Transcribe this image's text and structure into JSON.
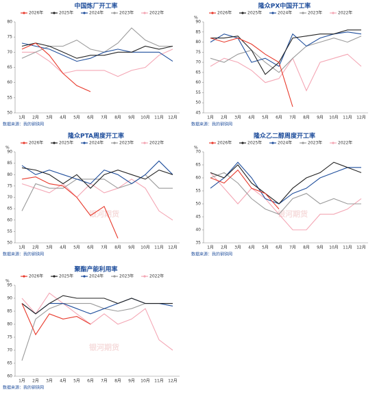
{
  "chart_data": [
    {
      "type": "line",
      "title": "中国炼厂开工率",
      "source": "数据来源：我的钢铁网",
      "categories": [
        "1月",
        "2月",
        "3月",
        "4月",
        "5月",
        "6月",
        "7月",
        "8月",
        "9月",
        "10月",
        "11月",
        "12月"
      ],
      "ylim": [
        50,
        80
      ],
      "yticks": [
        50,
        55,
        60,
        65,
        70,
        75,
        80
      ],
      "grid": false,
      "series": [
        {
          "name": "2026年",
          "color": "#e8392b",
          "values": [
            71,
            73,
            69,
            63,
            59,
            57,
            null,
            null,
            null,
            null,
            null,
            null
          ]
        },
        {
          "name": "2025年",
          "color": "#222222",
          "values": [
            72,
            73,
            72,
            70,
            68,
            69,
            69,
            70,
            70,
            72,
            71,
            72
          ]
        },
        {
          "name": "2024年",
          "color": "#1f4e9c",
          "values": [
            73,
            72,
            71,
            69,
            67,
            68,
            70,
            71,
            70,
            70,
            70,
            67
          ]
        },
        {
          "name": "2023年",
          "color": "#9a9a9a",
          "values": [
            68,
            70,
            72,
            72,
            74,
            71,
            70,
            73,
            78,
            74,
            72,
            72
          ]
        },
        {
          "name": "2022年",
          "color": "#f4a6b4",
          "values": [
            70,
            70,
            67,
            63,
            64,
            64,
            64,
            62,
            64,
            65,
            69,
            71
          ]
        }
      ]
    },
    {
      "type": "line",
      "title": "隆众PX中国开工率",
      "ylabel": "%",
      "source": "数据来源：我的钢铁网",
      "categories": [
        "1月",
        "2月",
        "3月",
        "4月",
        "5月",
        "6月",
        "7月",
        "8月",
        "9月",
        "10月",
        "11月",
        "12月"
      ],
      "ylim": [
        45,
        90
      ],
      "yticks": [
        45,
        50,
        55,
        60,
        65,
        70,
        75,
        80,
        85,
        90
      ],
      "grid": false,
      "series": [
        {
          "name": "2026年",
          "color": "#e8392b",
          "values": [
            82,
            80,
            82,
            79,
            74,
            70,
            48,
            null,
            null,
            null,
            null,
            null
          ]
        },
        {
          "name": "2025年",
          "color": "#222222",
          "values": [
            82,
            82,
            83,
            76,
            64,
            70,
            82,
            83,
            84,
            84,
            86,
            86
          ]
        },
        {
          "name": "2024年",
          "color": "#1f4e9c",
          "values": [
            80,
            84,
            82,
            70,
            72,
            68,
            84,
            78,
            82,
            84,
            85,
            84
          ]
        },
        {
          "name": "2023年",
          "color": "#9a9a9a",
          "values": [
            72,
            70,
            74,
            76,
            70,
            65,
            72,
            78,
            80,
            82,
            80,
            83
          ]
        },
        {
          "name": "2022年",
          "color": "#f4a6b4",
          "values": [
            68,
            72,
            70,
            66,
            60,
            62,
            72,
            56,
            70,
            72,
            74,
            68
          ]
        }
      ]
    },
    {
      "type": "line",
      "title": "隆众PTA周度开工率",
      "ylabel": "%",
      "source": "数据来源：我的钢铁网",
      "watermark": "银河期货",
      "categories": [
        "1月",
        "2月",
        "3月",
        "4月",
        "5月",
        "6月",
        "7月",
        "8月",
        "9月",
        "10月",
        "11月",
        "12月"
      ],
      "ylim": [
        50,
        90
      ],
      "yticks": [
        50,
        55,
        60,
        65,
        70,
        75,
        80,
        85,
        90
      ],
      "grid": false,
      "series": [
        {
          "name": "2026年",
          "color": "#e8392b",
          "values": [
            78,
            79,
            76,
            75,
            70,
            62,
            66,
            52,
            null,
            null,
            null,
            null
          ]
        },
        {
          "name": "2025年",
          "color": "#222222",
          "values": [
            83,
            82,
            80,
            76,
            80,
            74,
            80,
            82,
            80,
            78,
            82,
            80
          ]
        },
        {
          "name": "2024年",
          "color": "#1f4e9c",
          "values": [
            84,
            80,
            82,
            80,
            78,
            76,
            82,
            80,
            76,
            80,
            86,
            80
          ]
        },
        {
          "name": "2023年",
          "color": "#9a9a9a",
          "values": [
            64,
            76,
            74,
            74,
            78,
            78,
            78,
            74,
            76,
            80,
            74,
            74
          ]
        },
        {
          "name": "2022年",
          "color": "#f4a6b4",
          "values": [
            76,
            74,
            72,
            76,
            70,
            76,
            72,
            74,
            78,
            74,
            64,
            60
          ]
        }
      ]
    },
    {
      "type": "line",
      "title": "隆众乙二醇周度开工率",
      "ylabel": "%",
      "source": "数据来源：我的钢铁网",
      "watermark": "银河期货",
      "categories": [
        "1月",
        "2月",
        "3月",
        "4月",
        "5月",
        "6月",
        "7月",
        "8月",
        "9月",
        "10月",
        "11月",
        "12月"
      ],
      "ylim": [
        35,
        70
      ],
      "yticks": [
        35,
        40,
        45,
        50,
        55,
        60,
        65,
        70
      ],
      "grid": false,
      "series": [
        {
          "name": "2026年",
          "color": "#e8392b",
          "values": [
            60,
            58,
            63,
            56,
            54,
            48,
            null,
            null,
            null,
            null,
            null,
            null
          ]
        },
        {
          "name": "2025年",
          "color": "#222222",
          "values": [
            62,
            60,
            65,
            58,
            54,
            50,
            56,
            60,
            62,
            66,
            64,
            62
          ]
        },
        {
          "name": "2024年",
          "color": "#1f4e9c",
          "values": [
            56,
            60,
            66,
            60,
            52,
            50,
            54,
            56,
            60,
            62,
            64,
            64
          ]
        },
        {
          "name": "2023年",
          "color": "#9a9a9a",
          "values": [
            60,
            62,
            58,
            52,
            48,
            46,
            52,
            54,
            50,
            52,
            50,
            50
          ]
        },
        {
          "name": "2022年",
          "color": "#f4a6b4",
          "values": [
            62,
            56,
            50,
            56,
            52,
            46,
            40,
            40,
            46,
            46,
            48,
            52
          ]
        }
      ]
    },
    {
      "type": "line",
      "title": "聚酯产能利用率",
      "ylabel": "%",
      "source": "数据来源：我的钢铁网",
      "watermark": "银河期货",
      "categories": [
        "1月",
        "2月",
        "3月",
        "4月",
        "5月",
        "6月",
        "7月",
        "8月",
        "9月",
        "10月",
        "11月",
        "12月"
      ],
      "ylim": [
        60,
        95
      ],
      "yticks": [
        60,
        65,
        70,
        75,
        80,
        85,
        90,
        95
      ],
      "grid": false,
      "series": [
        {
          "name": "2026年",
          "color": "#e8392b",
          "values": [
            88,
            76,
            84,
            82,
            83,
            80,
            null,
            null,
            null,
            null,
            null,
            null
          ]
        },
        {
          "name": "2025年",
          "color": "#222222",
          "values": [
            88,
            84,
            88,
            91,
            90,
            90,
            90,
            88,
            90,
            88,
            88,
            88
          ]
        },
        {
          "name": "2024年",
          "color": "#1f4e9c",
          "values": [
            88,
            84,
            88,
            88,
            86,
            84,
            86,
            88,
            90,
            88,
            88,
            87
          ]
        },
        {
          "name": "2023年",
          "color": "#9a9a9a",
          "values": [
            66,
            82,
            86,
            88,
            88,
            88,
            86,
            85,
            86,
            88,
            88,
            88
          ]
        },
        {
          "name": "2022年",
          "color": "#f4a6b4",
          "values": [
            90,
            84,
            92,
            88,
            84,
            80,
            84,
            80,
            82,
            86,
            74,
            70
          ]
        }
      ]
    }
  ]
}
